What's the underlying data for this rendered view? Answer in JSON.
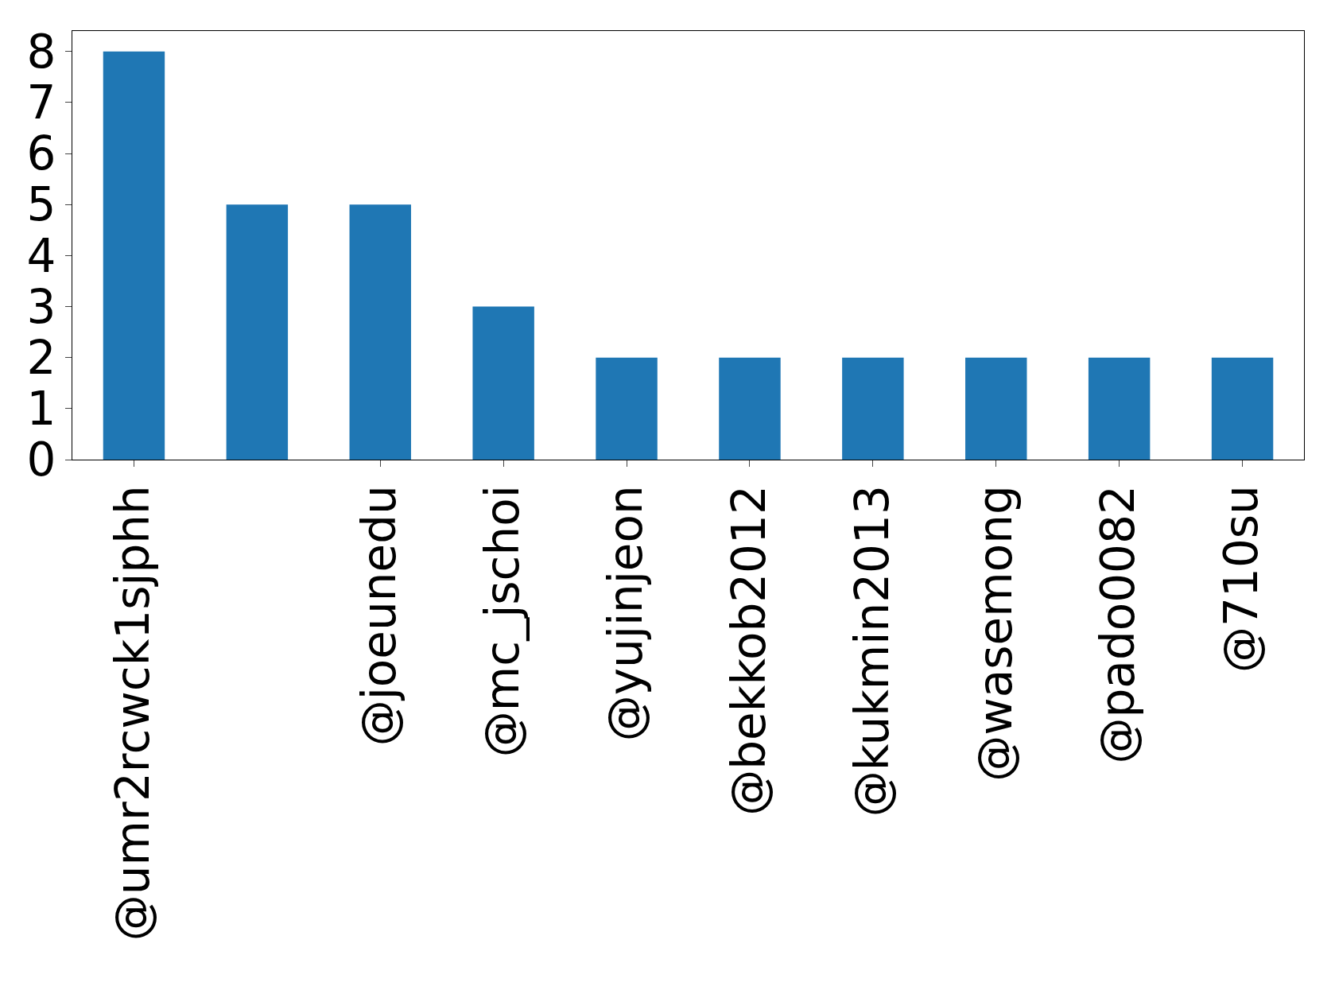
{
  "chart_data": {
    "type": "bar",
    "categories": [
      "@umr2rcwck1sjphh",
      null,
      "@joeunedu",
      "@mc_jschoi",
      "@yujinjeon",
      "@bekkob2012",
      "@kukmin2013",
      "@wasemong",
      "@pado0082",
      "@710su"
    ],
    "values": [
      8,
      5,
      5,
      3,
      2,
      2,
      2,
      2,
      2,
      2
    ],
    "color": "#1f77b4",
    "ylim": [
      0,
      8.4
    ],
    "yticks": [
      0,
      1,
      2,
      3,
      4,
      5,
      6,
      7,
      8
    ]
  }
}
